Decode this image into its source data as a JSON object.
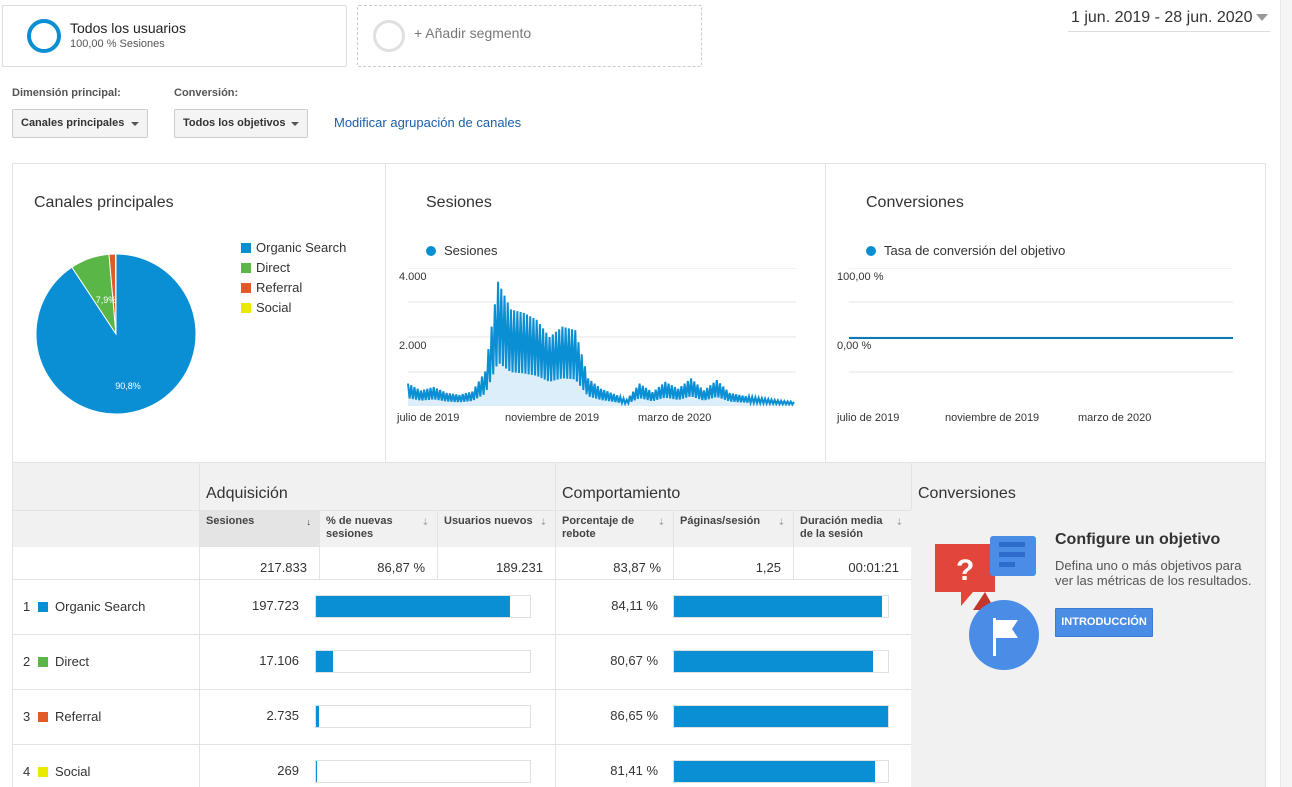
{
  "segments": {
    "primary": {
      "title": "Todos los usuarios",
      "subtitle": "100,00 % Sesiones"
    },
    "add_label": "+ Añadir segmento"
  },
  "date_range": "1 jun. 2019 - 28 jun. 2020",
  "controls": {
    "primary_dimension_label": "Dimensión principal:",
    "primary_dimension_value": "Canales principales",
    "conversion_label": "Conversión:",
    "conversion_value": "Todos los objetivos",
    "modify_link": "Modificar agrupación de canales"
  },
  "colors": {
    "organic": "#0a8ed4",
    "direct": "#59b647",
    "referral": "#e05b28",
    "social": "#eaea00"
  },
  "channels_chart": {
    "title": "Canales principales",
    "legend": [
      "Organic Search",
      "Direct",
      "Referral",
      "Social"
    ],
    "slice_labels": [
      "90,8%",
      "7,9%"
    ]
  },
  "sessions_chart": {
    "title": "Sesiones",
    "legend": "Sesiones",
    "y_ticks": [
      "4.000",
      "2.000"
    ],
    "x_ticks": [
      "julio de 2019",
      "noviembre de 2019",
      "marzo de 2020"
    ]
  },
  "conversions_chart": {
    "title": "Conversiones",
    "legend": "Tasa de conversión del objetivo",
    "y_ticks": [
      "100,00 %",
      "0,00 %"
    ],
    "x_ticks": [
      "julio de 2019",
      "noviembre de 2019",
      "marzo de 2020"
    ]
  },
  "chart_data": [
    {
      "type": "pie",
      "title": "Canales principales",
      "categories": [
        "Organic Search",
        "Direct",
        "Referral",
        "Social"
      ],
      "values": [
        90.8,
        7.9,
        1.3,
        0.1
      ]
    },
    {
      "type": "area",
      "title": "Sesiones",
      "ylim": [
        0,
        4000
      ],
      "series": [
        {
          "name": "Sesiones",
          "x": [
            "2019-06-01",
            "2019-06-16",
            "2019-07-01",
            "2019-07-16",
            "2019-08-01",
            "2019-08-16",
            "2019-09-01",
            "2019-09-10",
            "2019-09-20",
            "2019-10-01",
            "2019-10-10",
            "2019-10-20",
            "2019-11-01",
            "2019-11-10",
            "2019-11-20",
            "2019-12-01",
            "2019-12-10",
            "2019-12-20",
            "2020-01-01",
            "2020-01-15",
            "2020-02-01",
            "2020-02-15",
            "2020-03-01",
            "2020-03-15",
            "2020-04-01",
            "2020-04-15",
            "2020-05-01",
            "2020-05-15",
            "2020-06-01",
            "2020-06-15",
            "2020-06-28"
          ],
          "values": [
            650,
            450,
            550,
            380,
            320,
            420,
            1000,
            3600,
            2800,
            2700,
            2500,
            2000,
            2300,
            2200,
            800,
            500,
            350,
            180,
            650,
            400,
            700,
            500,
            800,
            450,
            750,
            380,
            300,
            250,
            200,
            150,
            120
          ]
        }
      ]
    },
    {
      "type": "line",
      "title": "Conversiones",
      "ylim": [
        0,
        100
      ],
      "series": [
        {
          "name": "Tasa de conversión del objetivo",
          "values": [
            0,
            0,
            0,
            0,
            0,
            0,
            0,
            0,
            0,
            0,
            0,
            0,
            0
          ]
        }
      ]
    }
  ],
  "table": {
    "groups": [
      "Adquisición",
      "Comportamiento",
      "Conversiones"
    ],
    "columns": [
      "Sesiones",
      "% de nuevas sesiones",
      "Usuarios nuevos",
      "Porcentaje de rebote",
      "Páginas/sesión",
      "Duración media de la sesión"
    ],
    "sort_icons": [
      "↓",
      "⇣",
      "⇣",
      "⇣",
      "⇣",
      "⇣"
    ],
    "totals": [
      "217.833",
      "86,87 %",
      "189.231",
      "83,87 %",
      "1,25",
      "00:01:21"
    ],
    "rows": [
      {
        "num": "1",
        "channel": "Organic Search",
        "sessions": "197.723",
        "sessions_pct": 90.8,
        "bounce": "84,11 %",
        "bounce_pct": 97.1
      },
      {
        "num": "2",
        "channel": "Direct",
        "sessions": "17.106",
        "sessions_pct": 7.9,
        "bounce": "80,67 %",
        "bounce_pct": 93.1
      },
      {
        "num": "3",
        "channel": "Referral",
        "sessions": "2.735",
        "sessions_pct": 1.3,
        "bounce": "86,65 %",
        "bounce_pct": 100
      },
      {
        "num": "4",
        "channel": "Social",
        "sessions": "269",
        "sessions_pct": 0.1,
        "bounce": "81,41 %",
        "bounce_pct": 94
      }
    ]
  },
  "goal_promo": {
    "title": "Configure un objetivo",
    "description": "Defina uno o más objetivos para ver las métricas de los resultados.",
    "button": "INTRODUCCIÓN"
  }
}
